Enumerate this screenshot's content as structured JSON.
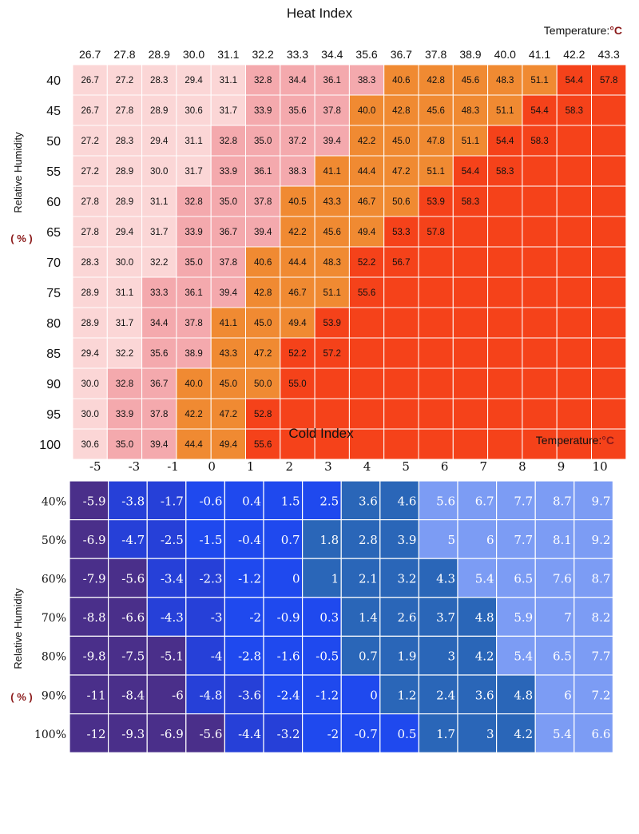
{
  "chart_data": [
    {
      "type": "heatmap",
      "title": "Heat Index",
      "x_unit_label": "Temperature:",
      "x_unit_symbol": "°C",
      "ylabel": "Relative Humidity",
      "ylabel_unit": "( % )",
      "columns": [
        "26.7",
        "27.8",
        "28.9",
        "30.0",
        "31.1",
        "32.2",
        "33.3",
        "34.4",
        "35.6",
        "36.7",
        "37.8",
        "38.9",
        "40.0",
        "41.1",
        "42.2",
        "43.3"
      ],
      "rows": [
        "40",
        "45",
        "50",
        "55",
        "60",
        "65",
        "70",
        "75",
        "80",
        "85",
        "90",
        "95",
        "100"
      ],
      "values": [
        [
          "26.7",
          "27.2",
          "28.3",
          "29.4",
          "31.1",
          "32.8",
          "34.4",
          "36.1",
          "38.3",
          "40.6",
          "42.8",
          "45.6",
          "48.3",
          "51.1",
          "54.4",
          "57.8"
        ],
        [
          "26.7",
          "27.8",
          "28.9",
          "30.6",
          "31.7",
          "33.9",
          "35.6",
          "37.8",
          "40.0",
          "42.8",
          "45.6",
          "48.3",
          "51.1",
          "54.4",
          "58.3",
          ""
        ],
        [
          "27.2",
          "28.3",
          "29.4",
          "31.1",
          "32.8",
          "35.0",
          "37.2",
          "39.4",
          "42.2",
          "45.0",
          "47.8",
          "51.1",
          "54.4",
          "58.3",
          "",
          ""
        ],
        [
          "27.2",
          "28.9",
          "30.0",
          "31.7",
          "33.9",
          "36.1",
          "38.3",
          "41.1",
          "44.4",
          "47.2",
          "51.1",
          "54.4",
          "58.3",
          "",
          "",
          ""
        ],
        [
          "27.8",
          "28.9",
          "31.1",
          "32.8",
          "35.0",
          "37.8",
          "40.5",
          "43.3",
          "46.7",
          "50.6",
          "53.9",
          "58.3",
          "",
          "",
          "",
          ""
        ],
        [
          "27.8",
          "29.4",
          "31.7",
          "33.9",
          "36.7",
          "39.4",
          "42.2",
          "45.6",
          "49.4",
          "53.3",
          "57.8",
          "",
          "",
          "",
          "",
          ""
        ],
        [
          "28.3",
          "30.0",
          "32.2",
          "35.0",
          "37.8",
          "40.6",
          "44.4",
          "48.3",
          "52.2",
          "56.7",
          "",
          "",
          "",
          "",
          "",
          ""
        ],
        [
          "28.9",
          "31.1",
          "33.3",
          "36.1",
          "39.4",
          "42.8",
          "46.7",
          "51.1",
          "55.6",
          "",
          "",
          "",
          "",
          "",
          "",
          ""
        ],
        [
          "28.9",
          "31.7",
          "34.4",
          "37.8",
          "41.1",
          "45.0",
          "49.4",
          "53.9",
          "",
          "",
          "",
          "",
          "",
          "",
          "",
          ""
        ],
        [
          "29.4",
          "32.2",
          "35.6",
          "38.9",
          "43.3",
          "47.2",
          "52.2",
          "57.2",
          "",
          "",
          "",
          "",
          "",
          "",
          "",
          ""
        ],
        [
          "30.0",
          "32.8",
          "36.7",
          "40.0",
          "45.0",
          "50.0",
          "55.0",
          "",
          "",
          "",
          "",
          "",
          "",
          "",
          "",
          ""
        ],
        [
          "30.0",
          "33.9",
          "37.8",
          "42.2",
          "47.2",
          "52.8",
          "",
          "",
          "",
          "",
          "",
          "",
          "",
          "",
          "",
          ""
        ],
        [
          "30.6",
          "35.0",
          "39.4",
          "44.4",
          "49.4",
          "55.6",
          "",
          "",
          "",
          "",
          "",
          "",
          "",
          "",
          "",
          ""
        ]
      ],
      "colors": {
        "level1": "#fbd6d6",
        "level2": "#f4a9ad",
        "level3": "#f08a32",
        "level4": "#f5421a",
        "header_bg": "#fbe4e4",
        "grid": "#ffffff"
      }
    },
    {
      "type": "heatmap",
      "title": "Cold Index",
      "x_unit_label": "Temperature:",
      "x_unit_symbol": "°C",
      "ylabel": "Relative Humidity",
      "ylabel_unit": "( % )",
      "columns": [
        "-5",
        "-3",
        "-1",
        "0",
        "1",
        "2",
        "3",
        "4",
        "5",
        "6",
        "7",
        "8",
        "9",
        "10"
      ],
      "rows": [
        "40%",
        "50%",
        "60%",
        "70%",
        "80%",
        "90%",
        "100%"
      ],
      "values": [
        [
          "-5.9",
          "-3.8",
          "-1.7",
          "-0.6",
          "0.4",
          "1.5",
          "2.5",
          "3.6",
          "4.6",
          "5.6",
          "6.7",
          "7.7",
          "8.7",
          "9.7"
        ],
        [
          "-6.9",
          "-4.7",
          "-2.5",
          "-1.5",
          "-0.4",
          "0.7",
          "1.8",
          "2.8",
          "3.9",
          "5",
          "6",
          "7.7",
          "8.1",
          "9.2"
        ],
        [
          "-7.9",
          "-5.6",
          "-3.4",
          "-2.3",
          "-1.2",
          "0",
          "1",
          "2.1",
          "3.2",
          "4.3",
          "5.4",
          "6.5",
          "7.6",
          "8.7"
        ],
        [
          "-8.8",
          "-6.6",
          "-4.3",
          "-3",
          "-2",
          "-0.9",
          "0.3",
          "1.4",
          "2.6",
          "3.7",
          "4.8",
          "5.9",
          "7",
          "8.2"
        ],
        [
          "-9.8",
          "-7.5",
          "-5.1",
          "-4",
          "-2.8",
          "-1.6",
          "-0.5",
          "0.7",
          "1.9",
          "3",
          "4.2",
          "5.4",
          "6.5",
          "7.7"
        ],
        [
          "-11",
          "-8.4",
          "-6",
          "-4.8",
          "-3.6",
          "-2.4",
          "-1.2",
          "0",
          "1.2",
          "2.4",
          "3.6",
          "4.8",
          "6",
          "7.2"
        ],
        [
          "-12",
          "-9.3",
          "-6.9",
          "-5.6",
          "-4.4",
          "-3.2",
          "-2",
          "-0.7",
          "0.5",
          "1.7",
          "3",
          "4.2",
          "5.4",
          "6.6"
        ]
      ],
      "bands": [
        [
          0,
          1,
          1,
          2,
          2,
          2,
          2,
          3,
          3,
          4,
          4,
          4,
          4,
          4
        ],
        [
          0,
          1,
          1,
          2,
          2,
          2,
          3,
          3,
          3,
          4,
          4,
          4,
          4,
          4
        ],
        [
          0,
          0,
          1,
          1,
          2,
          2,
          3,
          3,
          3,
          3,
          4,
          4,
          4,
          4
        ],
        [
          0,
          0,
          1,
          1,
          2,
          2,
          2,
          3,
          3,
          3,
          3,
          4,
          4,
          4
        ],
        [
          0,
          0,
          0,
          1,
          2,
          2,
          2,
          3,
          3,
          3,
          3,
          4,
          4,
          4
        ],
        [
          0,
          0,
          0,
          1,
          1,
          2,
          2,
          2,
          3,
          3,
          3,
          3,
          4,
          4
        ],
        [
          0,
          0,
          0,
          0,
          1,
          1,
          2,
          2,
          2,
          3,
          3,
          3,
          4,
          4
        ]
      ],
      "colors": {
        "band0": "#4a2f8a",
        "band1": "#2640d8",
        "band2": "#1f49ee",
        "band3": "#2a66b8",
        "band4": "#7c9cf4",
        "grid": "#ffffff"
      }
    }
  ]
}
